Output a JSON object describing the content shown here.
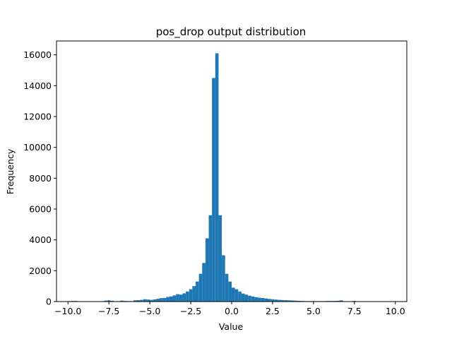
{
  "chart_data": {
    "type": "bar",
    "title": "pos_drop output distribution",
    "xlabel": "Value",
    "ylabel": "Frequency",
    "xlim": [
      -10.7,
      10.7
    ],
    "ylim": [
      0,
      16900
    ],
    "x_ticks": [
      -10.0,
      -7.5,
      -5.0,
      -2.5,
      0.0,
      2.5,
      5.0,
      7.5,
      10.0
    ],
    "x_tick_labels": [
      "−10.0",
      "−7.5",
      "−5.0",
      "−2.5",
      "0.0",
      "2.5",
      "5.0",
      "7.5",
      "10.0"
    ],
    "y_ticks": [
      0,
      2000,
      4000,
      6000,
      8000,
      10000,
      12000,
      14000,
      16000
    ],
    "y_tick_labels": [
      "0",
      "2000",
      "4000",
      "6000",
      "8000",
      "10000",
      "12000",
      "14000",
      "16000"
    ],
    "bar_color": "#1f77b4",
    "grid": false,
    "bin_range": [
      -10,
      10
    ],
    "bins": 100,
    "values": [
      30,
      40,
      40,
      5,
      0,
      0,
      0,
      0,
      0,
      10,
      20,
      60,
      80,
      50,
      20,
      30,
      60,
      40,
      30,
      30,
      80,
      90,
      110,
      150,
      130,
      110,
      140,
      180,
      220,
      230,
      300,
      330,
      400,
      480,
      450,
      530,
      650,
      800,
      1000,
      1300,
      1800,
      2500,
      4100,
      5600,
      14500,
      16100,
      5600,
      3000,
      1800,
      1300,
      900,
      800,
      650,
      520,
      450,
      380,
      330,
      280,
      250,
      230,
      200,
      170,
      150,
      130,
      110,
      100,
      90,
      80,
      70,
      60,
      50,
      40,
      30,
      30,
      30,
      30,
      30,
      30,
      30,
      40,
      40,
      40,
      50,
      80,
      20,
      20,
      20,
      40,
      15,
      15,
      10,
      10,
      10,
      5,
      0,
      0,
      0,
      0,
      0,
      0
    ]
  }
}
